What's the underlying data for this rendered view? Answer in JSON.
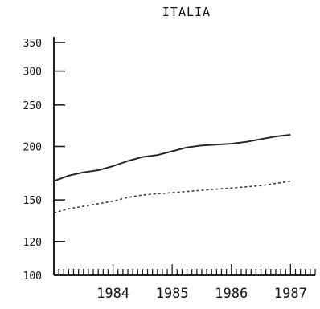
{
  "chart_data": {
    "type": "line",
    "title": "ITALIA",
    "xlabel": "",
    "ylabel": "",
    "y_scale": "log",
    "ylim": [
      100,
      400
    ],
    "xlim": [
      "1983-07",
      "1987-12"
    ],
    "yticks": [
      100,
      120,
      150,
      200,
      250,
      300,
      350
    ],
    "xticks": [
      "1984",
      "1985",
      "1986",
      "1987"
    ],
    "grid": false,
    "legend": "none",
    "colors": {
      "solid": "#222222",
      "dashed": "#333333"
    },
    "series": [
      {
        "style": "solid",
        "x": [
          "1983-07",
          "1983-10",
          "1984-01",
          "1984-04",
          "1984-07",
          "1984-10",
          "1985-01",
          "1985-04",
          "1985-07",
          "1985-10",
          "1986-01",
          "1986-04",
          "1986-07",
          "1986-10",
          "1987-01",
          "1987-04",
          "1987-07"
        ],
        "values": [
          166,
          171,
          174,
          176,
          180,
          185,
          189,
          191,
          195,
          199,
          201,
          202,
          203,
          205,
          208,
          211,
          213
        ]
      },
      {
        "style": "dashed",
        "x": [
          "1983-07",
          "1983-10",
          "1984-01",
          "1984-04",
          "1984-07",
          "1984-10",
          "1985-01",
          "1985-04",
          "1985-07",
          "1985-10",
          "1986-01",
          "1986-04",
          "1986-07",
          "1986-10",
          "1987-01",
          "1987-04",
          "1987-07"
        ],
        "values": [
          140,
          143,
          145,
          147,
          149,
          152,
          154,
          155,
          156,
          157,
          158,
          159,
          160,
          161,
          162,
          164,
          166
        ]
      }
    ]
  }
}
